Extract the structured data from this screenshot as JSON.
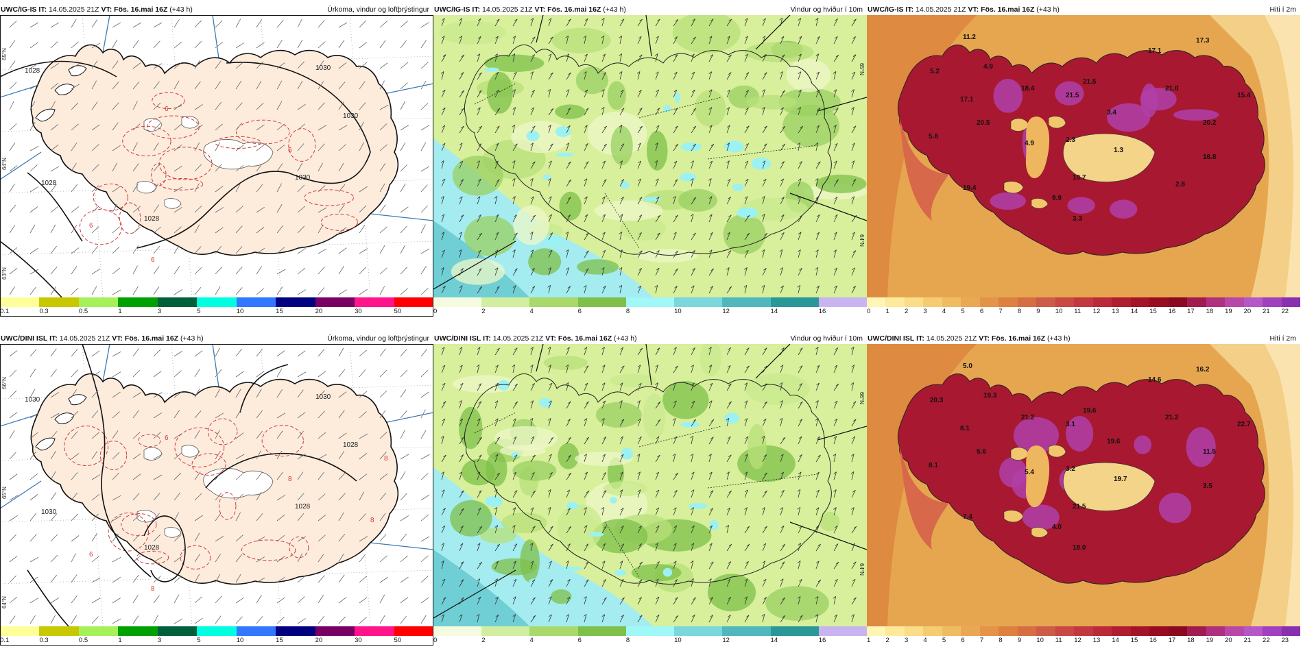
{
  "panels": [
    {
      "model": "UWC/IG-IS",
      "it_label": "IT:",
      "it": "14.05.2025 21Z",
      "vt_label": "VT:",
      "vt": "Fös. 16.mai 16Z",
      "lead": "(+43 h)",
      "field": "Úrkoma, vindur og loftþrýstingur",
      "type": "precip",
      "legend_colors": [
        "#ffff99",
        "#c8c800",
        "#a6f05a",
        "#00a000",
        "#00603c",
        "#00ffe0",
        "#3278ff",
        "#000080",
        "#780064",
        "#ff148c",
        "#ff0000"
      ],
      "legend_ticks": [
        "0.1",
        "0.3",
        "0.5",
        "1",
        "3",
        "5",
        "10",
        "15",
        "20",
        "30",
        "50"
      ],
      "isobar_labels": [
        "1028",
        "1030",
        "1028",
        "1030",
        "1030",
        "1028"
      ],
      "precip_labels": [
        "6",
        "6",
        "6",
        "6"
      ],
      "lat_labels": [
        "65°N",
        "64°N",
        "63°N"
      ]
    },
    {
      "model": "UWC/IG-IS",
      "it_label": "IT:",
      "it": "14.05.2025 21Z",
      "vt_label": "VT:",
      "vt": "Fös. 16.mai 16Z",
      "lead": "(+43 h)",
      "field": "Vindur og hviður í 10m",
      "type": "wind",
      "legend_colors": [
        "#f5fbe1",
        "#d2eea0",
        "#a8d96a",
        "#7fc04a",
        "#a0f8f8",
        "#7ad8dc",
        "#50b8bc",
        "#2a9898",
        "#c8b4f0"
      ],
      "legend_ticks": [
        "0",
        "2",
        "4",
        "6",
        "8",
        "10",
        "12",
        "14",
        "16"
      ],
      "lat_labels": [
        "65°N",
        "64°N"
      ]
    },
    {
      "model": "UWC/IG-IS",
      "it_label": "IT:",
      "it": "14.05.2025 21Z",
      "vt_label": "VT:",
      "vt": "Fös. 16.mai 16Z",
      "lead": "(+43 h)",
      "field": "Hiti í 2m",
      "type": "temp",
      "legend_colors": [
        "#fff5b4",
        "#ffe99c",
        "#fbdc88",
        "#f6cc72",
        "#f0bc62",
        "#eaa854",
        "#e49448",
        "#de8040",
        "#d66e44",
        "#cc5c48",
        "#c84844",
        "#c23840",
        "#ba2a38",
        "#b01c30",
        "#a41428",
        "#960c22",
        "#8a0820",
        "#a01c50",
        "#b03080",
        "#b848a8",
        "#b458c8",
        "#a040c0",
        "#8830b0"
      ],
      "legend_ticks": [
        "0",
        "1",
        "2",
        "3",
        "4",
        "5",
        "6",
        "7",
        "8",
        "9",
        "10",
        "11",
        "12",
        "13",
        "14",
        "15",
        "16",
        "17",
        "18",
        "19",
        "20",
        "21",
        "22"
      ],
      "temp_labels": [
        "11.2",
        "4.9",
        "5.2",
        "17.1",
        "20.5",
        "5.8",
        "4.9",
        "2.3",
        "1.3",
        "10.7",
        "9.9",
        "3.3",
        "19.4",
        "18.4",
        "21.5",
        "21.5",
        "3.4",
        "17.1",
        "21.0",
        "17.3",
        "15.4",
        "20.2",
        "16.8",
        "2.8"
      ]
    },
    {
      "model": "UWC/DINI ISL",
      "it_label": "IT:",
      "it": "14.05.2025 21Z",
      "vt_label": "VT:",
      "vt": "Fös. 16.mai 16Z",
      "lead": "(+43 h)",
      "field": "Úrkoma, vindur og loftþrýstingur",
      "type": "precip",
      "legend_colors": [
        "#ffff99",
        "#c8c800",
        "#a6f05a",
        "#00a000",
        "#00603c",
        "#00ffe0",
        "#3278ff",
        "#000080",
        "#780064",
        "#ff148c",
        "#ff0000"
      ],
      "legend_ticks": [
        "0.1",
        "0.3",
        "0.5",
        "1",
        "3",
        "5",
        "10",
        "15",
        "20",
        "30",
        "50"
      ],
      "isobar_labels": [
        "1030",
        "1030",
        "1030",
        "1028",
        "1028",
        "1028"
      ],
      "precip_labels": [
        "6",
        "8",
        "8",
        "6",
        "8",
        "8"
      ],
      "lat_labels": [
        "66°N",
        "65°N",
        "64°N"
      ]
    },
    {
      "model": "UWC/DINI ISL",
      "it_label": "IT:",
      "it": "14.05.2025 21Z",
      "vt_label": "VT:",
      "vt": "Fös. 16.mai 16Z",
      "lead": "(+43 h)",
      "field": "Vindur og hviður í 10m",
      "type": "wind",
      "legend_colors": [
        "#f5fbe1",
        "#d2eea0",
        "#a8d96a",
        "#7fc04a",
        "#a0f8f8",
        "#7ad8dc",
        "#50b8bc",
        "#2a9898",
        "#c8b4f0"
      ],
      "legend_ticks": [
        "0",
        "2",
        "4",
        "6",
        "8",
        "10",
        "12",
        "14",
        "16"
      ],
      "lat_labels": [
        "66°N",
        "64°N"
      ]
    },
    {
      "model": "UWC/DINI ISL",
      "it_label": "IT:",
      "it": "14.05.2025 21Z",
      "vt_label": "VT:",
      "vt": "Fös. 16.mai 16Z",
      "lead": "(+43 h)",
      "field": "Hiti í 2m",
      "type": "temp",
      "legend_colors": [
        "#fff5b4",
        "#ffe99c",
        "#fbdc88",
        "#f6cc72",
        "#f0bc62",
        "#eaa854",
        "#e49448",
        "#de8040",
        "#d66e44",
        "#cc5c48",
        "#c84844",
        "#c23840",
        "#ba2a38",
        "#b01c30",
        "#a41428",
        "#960c22",
        "#8a0820",
        "#a01c50",
        "#b03080",
        "#b848a8",
        "#b458c8",
        "#a040c0",
        "#8830b0"
      ],
      "legend_ticks": [
        "1",
        "2",
        "3",
        "4",
        "5",
        "6",
        "7",
        "8",
        "9",
        "10",
        "11",
        "12",
        "13",
        "14",
        "15",
        "16",
        "17",
        "18",
        "19",
        "20",
        "21",
        "22",
        "23"
      ],
      "temp_labels": [
        "5.0",
        "19.3",
        "20.3",
        "8.1",
        "5.6",
        "8.1",
        "5.4",
        "3.2",
        "19.7",
        "21.5",
        "4.0",
        "18.0",
        "7.4",
        "21.2",
        "3.1",
        "19.6",
        "19.6",
        "14.6",
        "21.2",
        "16.2",
        "22.7",
        "11.5",
        "3.5"
      ]
    }
  ]
}
